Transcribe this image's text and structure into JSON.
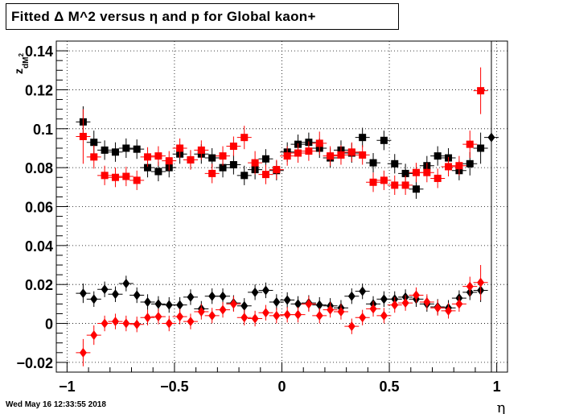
{
  "chart_data": {
    "type": "scatter",
    "title": "Fitted Δ M^2 versus η and p for Global kaon+",
    "xlabel": "η",
    "ylabel": "z_{dM^2}",
    "ylabel_main": "z",
    "ylabel_sub": "dM",
    "ylabel_sup": "2",
    "xlim": [
      -1.05,
      1.05
    ],
    "ylim": [
      -0.025,
      0.145
    ],
    "x_ticks": [
      -1,
      -0.5,
      0,
      0.5,
      1
    ],
    "x_tick_labels": [
      "−1",
      "−0.5",
      "0",
      "0.5",
      "1"
    ],
    "y_ticks": [
      -0.02,
      0,
      0.02,
      0.04,
      0.06,
      0.08,
      0.1,
      0.12,
      0.14
    ],
    "y_tick_labels": [
      "−0.02",
      "0",
      "0.02",
      "0.04",
      "0.06",
      "0.08",
      "0.1",
      "0.12",
      "0.14"
    ],
    "grid": true,
    "series": [
      {
        "color": "#000000",
        "marker": "square",
        "x": [
          -0.925,
          -0.875,
          -0.825,
          -0.775,
          -0.725,
          -0.675,
          -0.625,
          -0.575,
          -0.525,
          -0.475,
          -0.425,
          -0.375,
          -0.325,
          -0.275,
          -0.225,
          -0.175,
          -0.125,
          -0.075,
          -0.025,
          0.025,
          0.075,
          0.125,
          0.175,
          0.225,
          0.275,
          0.325,
          0.375,
          0.425,
          0.475,
          0.525,
          0.575,
          0.625,
          0.675,
          0.725,
          0.775,
          0.825,
          0.875,
          0.925
        ],
        "y": [
          0.1035,
          0.093,
          0.089,
          0.088,
          0.09,
          0.0895,
          0.08,
          0.078,
          0.08,
          0.087,
          0.084,
          0.087,
          0.085,
          0.08,
          0.0815,
          0.076,
          0.079,
          0.0845,
          0.0785,
          0.088,
          0.092,
          0.093,
          0.09,
          0.085,
          0.089,
          0.0875,
          0.0955,
          0.0825,
          0.094,
          0.082,
          0.077,
          0.069,
          0.081,
          0.086,
          0.085,
          0.0785,
          0.082,
          0.09
        ],
        "err": [
          0.008,
          0.006,
          0.005,
          0.005,
          0.005,
          0.005,
          0.005,
          0.005,
          0.005,
          0.005,
          0.005,
          0.005,
          0.005,
          0.005,
          0.005,
          0.005,
          0.005,
          0.005,
          0.005,
          0.005,
          0.005,
          0.005,
          0.005,
          0.005,
          0.005,
          0.005,
          0.005,
          0.005,
          0.005,
          0.005,
          0.005,
          0.005,
          0.005,
          0.005,
          0.005,
          0.005,
          0.006,
          0.008
        ]
      },
      {
        "color": "#ff0000",
        "marker": "square",
        "x": [
          -0.925,
          -0.875,
          -0.825,
          -0.775,
          -0.725,
          -0.675,
          -0.625,
          -0.575,
          -0.525,
          -0.475,
          -0.425,
          -0.375,
          -0.325,
          -0.275,
          -0.225,
          -0.175,
          -0.125,
          -0.075,
          -0.025,
          0.025,
          0.075,
          0.125,
          0.175,
          0.225,
          0.275,
          0.325,
          0.375,
          0.425,
          0.475,
          0.525,
          0.575,
          0.625,
          0.675,
          0.725,
          0.775,
          0.825,
          0.875,
          0.925
        ],
        "y": [
          0.096,
          0.0855,
          0.076,
          0.075,
          0.0755,
          0.0735,
          0.0855,
          0.086,
          0.0835,
          0.09,
          0.084,
          0.089,
          0.077,
          0.086,
          0.091,
          0.0955,
          0.0825,
          0.0765,
          0.079,
          0.086,
          0.0875,
          0.0885,
          0.0925,
          0.086,
          0.0865,
          0.088,
          0.0865,
          0.0725,
          0.0735,
          0.071,
          0.071,
          0.0775,
          0.0775,
          0.0745,
          0.0805,
          0.081,
          0.092,
          0.1195
        ],
        "err": [
          0.014,
          0.006,
          0.005,
          0.005,
          0.005,
          0.005,
          0.005,
          0.005,
          0.005,
          0.005,
          0.005,
          0.005,
          0.005,
          0.005,
          0.005,
          0.006,
          0.006,
          0.005,
          0.005,
          0.005,
          0.005,
          0.005,
          0.006,
          0.005,
          0.005,
          0.005,
          0.005,
          0.005,
          0.005,
          0.005,
          0.005,
          0.005,
          0.005,
          0.005,
          0.005,
          0.005,
          0.007,
          0.012
        ]
      },
      {
        "color": "#000000",
        "marker": "diamond",
        "x": [
          -0.925,
          -0.875,
          -0.825,
          -0.775,
          -0.725,
          -0.675,
          -0.625,
          -0.575,
          -0.525,
          -0.475,
          -0.425,
          -0.375,
          -0.325,
          -0.275,
          -0.225,
          -0.175,
          -0.125,
          -0.075,
          -0.025,
          0.025,
          0.075,
          0.125,
          0.175,
          0.225,
          0.275,
          0.325,
          0.375,
          0.425,
          0.475,
          0.525,
          0.575,
          0.625,
          0.675,
          0.725,
          0.775,
          0.825,
          0.875,
          0.925,
          0.975
        ],
        "y": [
          0.0155,
          0.0125,
          0.0175,
          0.015,
          0.0205,
          0.0145,
          0.011,
          0.01,
          0.0095,
          0.0095,
          0.0135,
          0.0075,
          0.014,
          0.014,
          0.0105,
          0.009,
          0.016,
          0.017,
          0.011,
          0.012,
          0.01,
          0.0105,
          0.0095,
          0.009,
          0.008,
          0.014,
          0.0165,
          0.01,
          0.0125,
          0.0125,
          0.0135,
          0.0125,
          0.01,
          0.0085,
          0.008,
          0.013,
          0.016,
          0.017,
          0.0955
        ],
        "err": [
          0.005,
          0.004,
          0.004,
          0.004,
          0.004,
          0.004,
          0.004,
          0.004,
          0.004,
          0.004,
          0.004,
          0.004,
          0.004,
          0.004,
          0.004,
          0.004,
          0.004,
          0.004,
          0.004,
          0.004,
          0.004,
          0.004,
          0.004,
          0.004,
          0.004,
          0.004,
          0.004,
          0.004,
          0.004,
          0.004,
          0.004,
          0.004,
          0.004,
          0.004,
          0.004,
          0.004,
          0.004,
          0.006,
          0.001
        ]
      },
      {
        "color": "#ff0000",
        "marker": "diamond",
        "x": [
          -0.925,
          -0.875,
          -0.825,
          -0.775,
          -0.725,
          -0.675,
          -0.625,
          -0.575,
          -0.525,
          -0.475,
          -0.425,
          -0.375,
          -0.325,
          -0.275,
          -0.225,
          -0.175,
          -0.125,
          -0.075,
          -0.025,
          0.025,
          0.075,
          0.125,
          0.175,
          0.225,
          0.275,
          0.325,
          0.375,
          0.425,
          0.475,
          0.525,
          0.575,
          0.625,
          0.675,
          0.725,
          0.775,
          0.825,
          0.875,
          0.925
        ],
        "y": [
          -0.015,
          -0.006,
          0.0,
          0.001,
          0.0,
          -0.0005,
          0.003,
          0.0035,
          0.0,
          0.0035,
          0.001,
          0.006,
          0.004,
          0.007,
          0.01,
          0.003,
          0.0025,
          0.0055,
          0.004,
          0.0045,
          0.0045,
          0.01,
          0.004,
          0.007,
          0.006,
          -0.0015,
          0.003,
          0.0075,
          0.004,
          0.0095,
          0.0105,
          0.0145,
          0.011,
          0.008,
          0.0065,
          0.01,
          0.019,
          0.021
        ],
        "err": [
          0.007,
          0.005,
          0.004,
          0.004,
          0.004,
          0.004,
          0.004,
          0.004,
          0.004,
          0.004,
          0.004,
          0.004,
          0.004,
          0.004,
          0.004,
          0.004,
          0.004,
          0.004,
          0.004,
          0.004,
          0.004,
          0.004,
          0.004,
          0.004,
          0.004,
          0.004,
          0.004,
          0.004,
          0.004,
          0.004,
          0.004,
          0.004,
          0.004,
          0.004,
          0.004,
          0.004,
          0.005,
          0.009
        ]
      }
    ]
  },
  "footer": {
    "timestamp": "Wed May 16 12:33:55 2018"
  }
}
